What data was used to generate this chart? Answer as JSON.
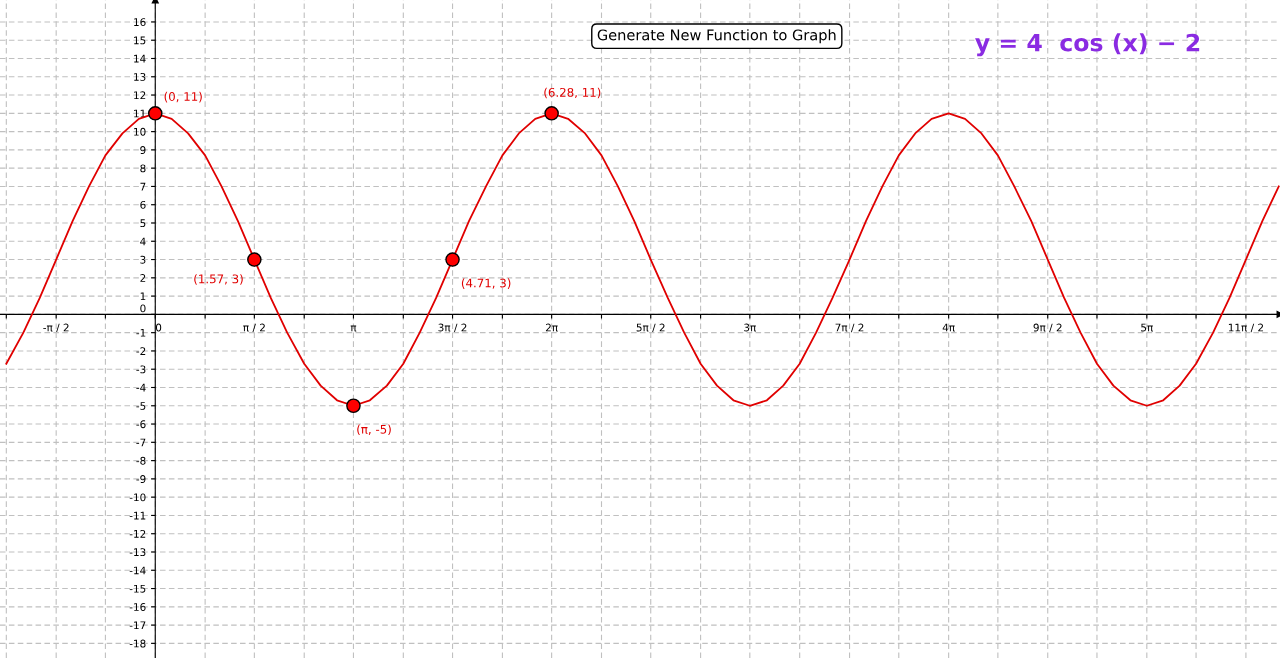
{
  "chart_data": {
    "type": "line",
    "title": "y = 4  cos (x) − 2",
    "annotations": [
      "Generate New Function to Graph",
      {
        "text": "(0, 11)",
        "x": 0,
        "y": 11
      },
      {
        "text": "(1.57, 3)",
        "x": 1.57,
        "y": 3
      },
      {
        "text": "(π, -5)",
        "x": 3.14,
        "y": -5
      },
      {
        "text": "(4.71, 3)",
        "x": 4.71,
        "y": 3
      },
      {
        "text": "(6.28, 11)",
        "x": 6.28,
        "y": 11
      }
    ],
    "series": [
      {
        "type": "line",
        "color": "#e00000",
        "marker": "none",
        "line_style": "solid",
        "x": [
          -2.36,
          -2.09,
          -1.83,
          -1.57,
          -1.31,
          -1.05,
          -0.79,
          -0.52,
          -0.26,
          0,
          0.26,
          0.52,
          0.79,
          1.05,
          1.31,
          1.57,
          1.83,
          2.09,
          2.36,
          2.62,
          2.88,
          3.14,
          3.4,
          3.67,
          3.93,
          4.19,
          4.45,
          4.71,
          4.97,
          5.24,
          5.5,
          5.76,
          6.02,
          6.28,
          6.54,
          6.81,
          7.07,
          7.33,
          7.59,
          7.85,
          8.12,
          8.38,
          8.64,
          8.9,
          9.16,
          9.42,
          9.69,
          9.95,
          10.21,
          10.47,
          10.73,
          11.0,
          11.26,
          11.52,
          11.78,
          12.04,
          12.3,
          12.57,
          12.83,
          13.09,
          13.35,
          13.61,
          13.88,
          14.14,
          14.4,
          14.66,
          14.92,
          15.18,
          15.45,
          15.71,
          15.97,
          16.23,
          16.49,
          16.76,
          17.02,
          17.28,
          17.54,
          17.8
        ],
        "values": [
          -2.7,
          -1,
          0.9,
          3,
          5.1,
          7,
          8.7,
          9.9,
          10.7,
          11,
          10.7,
          9.9,
          8.7,
          7,
          5.1,
          3,
          0.9,
          -1,
          -2.7,
          -3.9,
          -4.7,
          -5,
          -4.7,
          -3.9,
          -2.7,
          -1,
          0.9,
          3,
          5.1,
          7,
          8.7,
          9.9,
          10.7,
          11,
          10.7,
          9.9,
          8.7,
          7,
          5.1,
          3,
          0.9,
          -1,
          -2.7,
          -3.9,
          -4.7,
          -5,
          -4.7,
          -3.9,
          -2.7,
          -1,
          0.9,
          3,
          5.1,
          7,
          8.7,
          9.9,
          10.7,
          11,
          10.7,
          9.9,
          8.7,
          7,
          5.1,
          3,
          0.9,
          -1,
          -2.7,
          -3.9,
          -4.7,
          -5,
          -4.7,
          -3.9,
          -2.7,
          -1,
          0.9,
          3,
          5.1,
          7
        ]
      },
      {
        "type": "scatter",
        "color": "#ff0000",
        "marker": "circle",
        "x": [
          0,
          1.57,
          3.14,
          4.71,
          6.28
        ],
        "values": [
          11,
          3,
          -5,
          3,
          11
        ]
      }
    ],
    "xlim": [
      -2.46,
      17.82
    ],
    "ylim": [
      -18.8,
      17.2
    ],
    "xticks": [
      {
        "value": -2.36,
        "label": null
      },
      {
        "value": -1.57,
        "label": "-π / 2"
      },
      {
        "value": -0.79,
        "label": null
      },
      {
        "value": 0,
        "label": "0"
      },
      {
        "value": 0.79,
        "label": null
      },
      {
        "value": 1.57,
        "label": "π / 2"
      },
      {
        "value": 2.36,
        "label": null
      },
      {
        "value": 3.14,
        "label": "π"
      },
      {
        "value": 3.93,
        "label": null
      },
      {
        "value": 4.71,
        "label": "3π / 2"
      },
      {
        "value": 5.5,
        "label": null
      },
      {
        "value": 6.28,
        "label": "2π"
      },
      {
        "value": 7.07,
        "label": null
      },
      {
        "value": 7.85,
        "label": "5π / 2"
      },
      {
        "value": 8.64,
        "label": null
      },
      {
        "value": 9.42,
        "label": "3π"
      },
      {
        "value": 10.21,
        "label": null
      },
      {
        "value": 11.0,
        "label": "7π / 2"
      },
      {
        "value": 11.78,
        "label": null
      },
      {
        "value": 12.57,
        "label": "4π"
      },
      {
        "value": 13.35,
        "label": null
      },
      {
        "value": 14.14,
        "label": "9π / 2"
      },
      {
        "value": 14.92,
        "label": null
      },
      {
        "value": 15.71,
        "label": "5π"
      },
      {
        "value": 16.49,
        "label": null
      },
      {
        "value": 17.28,
        "label": "11π / 2"
      }
    ],
    "yticks": [
      -18,
      -17,
      -16,
      -15,
      -14,
      -13,
      -12,
      -11,
      -10,
      -9,
      -8,
      -7,
      -6,
      -5,
      -4,
      -3,
      -2,
      -1,
      0,
      1,
      2,
      3,
      4,
      5,
      6,
      7,
      8,
      9,
      10,
      11,
      12,
      13,
      14,
      15,
      16
    ],
    "grid": true
  }
}
